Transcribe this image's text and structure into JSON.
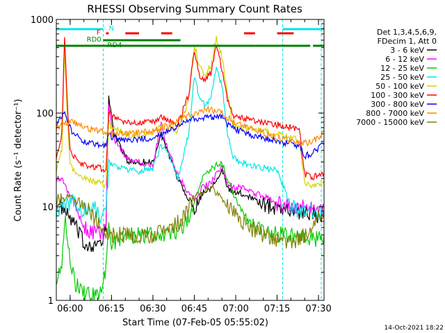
{
  "chart_data": {
    "type": "line",
    "title": "RHESSI Observing Summary Count Rates",
    "xlabel": "Start Time (07-Feb-05 05:55:02)",
    "ylabel": "Count Rate (s⁻¹ detector⁻¹)",
    "xlim_minutes": [
      0,
      97
    ],
    "x_unit": "minutes since 05:55:02",
    "ylim": [
      1,
      1000
    ],
    "yscale": "log",
    "x_ticks": [
      {
        "label": "06:00",
        "minutes": 5
      },
      {
        "label": "06:15",
        "minutes": 20
      },
      {
        "label": "06:30",
        "minutes": 35
      },
      {
        "label": "06:45",
        "minutes": 50
      },
      {
        "label": "07:00",
        "minutes": 65
      },
      {
        "label": "07:15",
        "minutes": 80
      },
      {
        "label": "07:30",
        "minutes": 95
      }
    ],
    "y_ticks": [
      {
        "label": "1",
        "value": 1
      },
      {
        "label": "10",
        "value": 10
      },
      {
        "label": "100",
        "value": 100
      },
      {
        "label": "1000",
        "value": 1000
      }
    ],
    "legend_header": [
      "Det 1,3,4,5,6,9,",
      "FDecim 1, Att 0"
    ],
    "series": [
      {
        "name": "3 - 6 keV",
        "color": "#000000",
        "x": [
          0,
          2,
          3,
          4,
          6,
          10,
          17,
          18,
          19,
          21,
          26,
          35,
          38,
          40,
          44,
          48,
          50,
          53,
          56,
          58,
          60,
          62,
          63,
          64,
          66,
          70,
          72,
          74,
          78,
          80,
          83,
          84,
          87,
          90,
          93,
          95,
          97
        ],
        "values": [
          10,
          10,
          9,
          8,
          7,
          4,
          4,
          6,
          150,
          60,
          30,
          30,
          60,
          40,
          20,
          12,
          10,
          14,
          16,
          20,
          25,
          16,
          15,
          14,
          14,
          13,
          12,
          11,
          10,
          10,
          9.5,
          9,
          9,
          9,
          8.5,
          8,
          9
        ]
      },
      {
        "name": "6 - 12 keV",
        "color": "#ff00ff",
        "x": [
          0,
          2,
          3,
          4,
          6,
          10,
          17,
          18,
          19,
          21,
          26,
          35,
          38,
          40,
          44,
          48,
          50,
          53,
          56,
          58,
          60,
          62,
          63,
          64,
          66,
          70,
          72,
          74,
          78,
          80,
          83,
          84,
          87,
          90,
          93,
          95,
          97
        ],
        "values": [
          20,
          20,
          18,
          14,
          12,
          6,
          5,
          7,
          120,
          50,
          32,
          28,
          80,
          45,
          22,
          14,
          12,
          16,
          18,
          22,
          28,
          18,
          17,
          16,
          16,
          15,
          14,
          13,
          12,
          11,
          10.5,
          10,
          10,
          10,
          9.5,
          9,
          10
        ]
      },
      {
        "name": "12 - 25 keV",
        "color": "#00cc00",
        "x": [
          0,
          2,
          3,
          4,
          5,
          6,
          7,
          10,
          15,
          18,
          19,
          20,
          25,
          35,
          45,
          48,
          50,
          53,
          56,
          58,
          60,
          62,
          64,
          66,
          70,
          72,
          75,
          80,
          85,
          90,
          95,
          97
        ],
        "values": [
          1.8,
          2.5,
          8,
          5,
          2.5,
          2,
          1.5,
          1.2,
          1.1,
          2,
          6,
          4,
          5,
          5,
          5.5,
          8,
          12,
          20,
          25,
          28,
          30,
          20,
          14,
          10,
          7,
          6,
          5.5,
          5,
          5,
          4.5,
          4.5,
          5
        ]
      },
      {
        "name": "25 - 50 keV",
        "color": "#00e5e5",
        "x": [
          0,
          2,
          4,
          6,
          8,
          10,
          12,
          14,
          16,
          18,
          19,
          20,
          25,
          30,
          35,
          38,
          40,
          44,
          48,
          50,
          52,
          54,
          56,
          58,
          60,
          62,
          64,
          66,
          70,
          75,
          80,
          85,
          88,
          90,
          93,
          95,
          97
        ],
        "values": [
          9,
          10,
          11,
          11,
          10,
          9,
          9,
          9.5,
          8,
          8,
          30,
          28,
          25,
          24,
          26,
          45,
          40,
          20,
          60,
          250,
          140,
          120,
          150,
          300,
          200,
          60,
          35,
          30,
          28,
          26,
          25,
          10,
          9,
          9,
          8.5,
          9,
          9
        ]
      },
      {
        "name": "50 - 100 keV",
        "color": "#d4d400",
        "x": [
          0,
          2,
          3,
          4,
          5,
          6,
          8,
          10,
          15,
          18,
          19,
          20,
          25,
          30,
          35,
          38,
          40,
          44,
          48,
          50,
          52,
          54,
          56,
          58,
          60,
          62,
          64,
          66,
          70,
          75,
          80,
          85,
          88,
          90,
          93,
          95,
          97
        ],
        "values": [
          25,
          40,
          500,
          80,
          30,
          25,
          22,
          20,
          18,
          17,
          80,
          70,
          60,
          58,
          60,
          75,
          70,
          65,
          140,
          550,
          300,
          260,
          320,
          650,
          400,
          160,
          75,
          70,
          68,
          65,
          60,
          55,
          50,
          18,
          17,
          17,
          18
        ]
      },
      {
        "name": "100 - 300 keV",
        "color": "#ff0000",
        "x": [
          0,
          2,
          3,
          4,
          5,
          6,
          8,
          10,
          15,
          18,
          19,
          20,
          25,
          30,
          35,
          38,
          40,
          44,
          48,
          50,
          52,
          54,
          56,
          58,
          60,
          62,
          64,
          66,
          70,
          75,
          80,
          85,
          88,
          90,
          93,
          95,
          97
        ],
        "values": [
          35,
          60,
          700,
          120,
          40,
          35,
          30,
          28,
          26,
          25,
          110,
          95,
          80,
          78,
          80,
          90,
          85,
          75,
          160,
          480,
          250,
          230,
          270,
          520,
          300,
          140,
          95,
          90,
          85,
          80,
          75,
          70,
          68,
          22,
          21,
          22,
          23
        ]
      },
      {
        "name": "300 - 800 keV",
        "color": "#0000ff",
        "x": [
          0,
          2,
          3,
          4,
          6,
          8,
          10,
          15,
          18,
          19,
          20,
          25,
          30,
          35,
          40,
          45,
          50,
          55,
          60,
          62,
          64,
          66,
          70,
          75,
          80,
          85,
          88,
          90,
          93,
          95,
          97
        ],
        "values": [
          80,
          90,
          100,
          80,
          60,
          55,
          50,
          45,
          45,
          65,
          55,
          52,
          52,
          55,
          62,
          75,
          88,
          90,
          90,
          75,
          70,
          65,
          58,
          55,
          50,
          47,
          45,
          35,
          38,
          42,
          48
        ]
      },
      {
        "name": "800 - 7000 keV",
        "color": "#ff8800",
        "x": [
          0,
          2,
          4,
          6,
          8,
          10,
          15,
          20,
          25,
          30,
          35,
          40,
          45,
          50,
          55,
          58,
          60,
          62,
          65,
          70,
          75,
          80,
          85,
          90,
          93,
          95,
          97
        ],
        "values": [
          70,
          75,
          80,
          80,
          75,
          70,
          65,
          60,
          60,
          62,
          65,
          72,
          85,
          100,
          110,
          105,
          100,
          90,
          80,
          70,
          62,
          55,
          50,
          48,
          50,
          55,
          62
        ]
      },
      {
        "name": "7000 - 15000 keV",
        "color": "#808000",
        "x": [
          0,
          2,
          4,
          6,
          8,
          10,
          12,
          15,
          18,
          20,
          25,
          30,
          35,
          40,
          45,
          48,
          50,
          52,
          54,
          56,
          58,
          60,
          62,
          65,
          70,
          75,
          80,
          85,
          88,
          90,
          92,
          93,
          95,
          97
        ],
        "values": [
          11,
          12,
          13,
          12,
          11,
          10,
          9,
          7,
          5.5,
          5,
          5,
          5,
          5,
          5.5,
          7,
          10,
          12,
          14,
          15,
          16,
          14,
          12,
          10,
          8,
          6,
          5,
          4.5,
          4.2,
          4.5,
          5,
          5.5,
          7,
          8,
          9
        ]
      }
    ],
    "flags": [
      {
        "label": "N",
        "color": "#00e5e5",
        "segments": [
          [
            0,
            17
          ],
          [
            82,
            97
          ]
        ]
      },
      {
        "label": "F",
        "color": "#ff0000",
        "segments": [
          [
            18,
            19
          ],
          [
            25,
            30
          ],
          [
            38,
            42
          ],
          [
            68,
            72
          ],
          [
            80,
            86
          ]
        ]
      },
      {
        "label": "RD0",
        "color": "#008000",
        "segments": [
          [
            17,
            45
          ]
        ]
      },
      {
        "label": "RD4",
        "color": "#008000",
        "segments": [
          [
            0,
            17
          ],
          [
            17,
            45
          ],
          [
            45,
            72
          ],
          [
            72,
            92
          ],
          [
            93,
            97
          ]
        ]
      }
    ],
    "vertical_markers_minutes": [
      17,
      82,
      96
    ],
    "footer_date": "14-Oct-2021 18:22"
  }
}
